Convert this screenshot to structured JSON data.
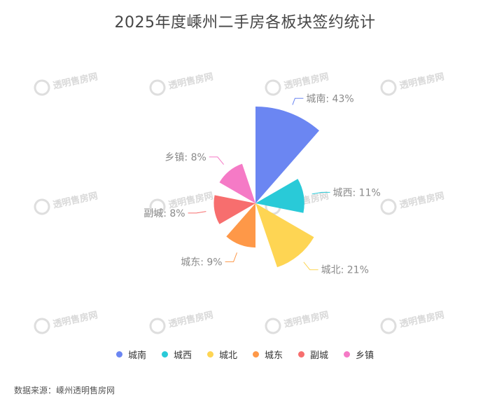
{
  "title": "2025年度嵊州二手房各板块签约统计",
  "source": "数据来源：嵊州透明售房网",
  "watermark": {
    "text": "透明售房网"
  },
  "chart_data": {
    "type": "pie",
    "subtype": "nightingale-rose",
    "title": "2025年度嵊州二手房各板块签约统计",
    "legend_position": "bottom",
    "categories": [
      "城南",
      "城西",
      "城北",
      "城东",
      "副城",
      "乡镇"
    ],
    "values": [
      43,
      11,
      21,
      9,
      8,
      8
    ],
    "labels": [
      "城南: 43%",
      "城西: 11%",
      "城北: 21%",
      "城东: 9%",
      "副城: 8%",
      "乡镇: 8%"
    ],
    "colors": [
      "#6b86f2",
      "#29cad8",
      "#fed553",
      "#fe9848",
      "#f76e6e",
      "#f57ac6"
    ]
  }
}
